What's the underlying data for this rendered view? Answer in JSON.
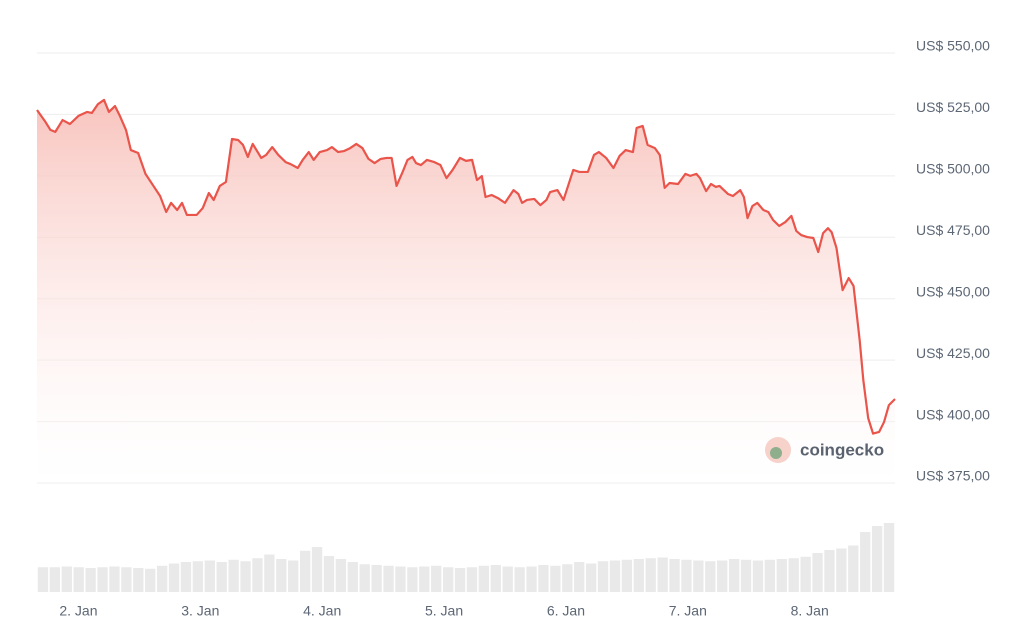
{
  "chart_data": {
    "type": "line",
    "x": [
      1.66,
      1.73,
      1.77,
      1.81,
      1.87,
      1.93,
      2.0,
      2.07,
      2.11,
      2.16,
      2.21,
      2.25,
      2.3,
      2.34,
      2.39,
      2.43,
      2.49,
      2.55,
      2.61,
      2.67,
      2.72,
      2.76,
      2.81,
      2.85,
      2.89,
      2.97,
      3.02,
      3.07,
      3.11,
      3.16,
      3.21,
      3.26,
      3.31,
      3.35,
      3.39,
      3.43,
      3.5,
      3.54,
      3.59,
      3.64,
      3.7,
      3.74,
      3.8,
      3.84,
      3.89,
      3.93,
      3.98,
      4.04,
      4.08,
      4.13,
      4.18,
      4.23,
      4.28,
      4.33,
      4.38,
      4.43,
      4.48,
      4.53,
      4.57,
      4.61,
      4.66,
      4.7,
      4.74,
      4.77,
      4.81,
      4.86,
      4.92,
      4.97,
      5.02,
      5.07,
      5.13,
      5.18,
      5.23,
      5.27,
      5.31,
      5.34,
      5.39,
      5.44,
      5.5,
      5.57,
      5.61,
      5.64,
      5.68,
      5.74,
      5.79,
      5.84,
      5.87,
      5.93,
      5.98,
      6.06,
      6.11,
      6.18,
      6.23,
      6.27,
      6.33,
      6.39,
      6.44,
      6.49,
      6.55,
      6.58,
      6.63,
      6.67,
      6.73,
      6.77,
      6.81,
      6.85,
      6.92,
      6.98,
      7.02,
      7.07,
      7.1,
      7.15,
      7.19,
      7.23,
      7.26,
      7.33,
      7.37,
      7.43,
      7.46,
      7.49,
      7.53,
      7.57,
      7.62,
      7.66,
      7.7,
      7.75,
      7.8,
      7.85,
      7.89,
      7.93,
      7.98,
      8.03,
      8.07,
      8.11,
      8.15,
      8.18,
      8.22,
      8.27,
      8.32,
      8.36,
      8.41,
      8.44,
      8.48,
      8.52,
      8.57,
      8.61,
      8.65,
      8.7
    ],
    "values": [
      526.8,
      521.9,
      518.7,
      517.9,
      522.7,
      521.1,
      524.4,
      526.0,
      525.6,
      529.2,
      530.9,
      526.0,
      528.4,
      524.4,
      518.7,
      510.5,
      509.3,
      500.8,
      496.3,
      491.8,
      485.3,
      489.0,
      486.1,
      489.0,
      484.1,
      484.1,
      486.9,
      493.0,
      490.2,
      495.9,
      497.5,
      515.0,
      514.6,
      512.6,
      507.7,
      513.0,
      507.3,
      508.5,
      511.7,
      508.5,
      505.6,
      504.8,
      503.2,
      506.5,
      509.7,
      506.5,
      509.7,
      510.5,
      511.7,
      509.7,
      510.1,
      511.3,
      513.0,
      511.3,
      506.9,
      505.2,
      506.9,
      507.3,
      507.3,
      495.9,
      501.6,
      506.5,
      507.7,
      505.2,
      504.4,
      506.5,
      505.6,
      504.4,
      499.1,
      502.4,
      507.3,
      506.1,
      506.5,
      498.3,
      499.9,
      491.4,
      492.2,
      491.0,
      489.0,
      494.2,
      492.6,
      489.0,
      490.2,
      490.6,
      488.1,
      490.2,
      493.4,
      494.2,
      490.2,
      502.4,
      501.6,
      501.6,
      508.5,
      509.7,
      507.3,
      503.2,
      508.1,
      510.5,
      509.7,
      519.5,
      520.3,
      512.6,
      511.3,
      508.5,
      495.1,
      497.1,
      496.7,
      500.8,
      500.0,
      500.8,
      499.1,
      493.8,
      496.7,
      495.5,
      495.9,
      492.6,
      491.8,
      494.2,
      491.4,
      482.8,
      487.7,
      489.0,
      486.1,
      485.3,
      482.0,
      479.6,
      481.2,
      483.7,
      477.6,
      475.9,
      475.1,
      474.7,
      469.0,
      476.7,
      478.7,
      477.1,
      470.6,
      453.5,
      458.4,
      455.2,
      433.2,
      416.9,
      401.4,
      395.1,
      395.8,
      399.8,
      406.7,
      409.2
    ],
    "color": "#e9544b",
    "volume_values": [
      33,
      33,
      34,
      33,
      32,
      33,
      34,
      33,
      32,
      31,
      35,
      38,
      40,
      41,
      42,
      40,
      43,
      41,
      45,
      50,
      44,
      42,
      55,
      60,
      48,
      44,
      40,
      37,
      36,
      35,
      34,
      33,
      34,
      35,
      33,
      32,
      33,
      35,
      36,
      34,
      33,
      34,
      36,
      35,
      37,
      40,
      38,
      41,
      42,
      43,
      44,
      45,
      46,
      44,
      43,
      42,
      41,
      42,
      44,
      43,
      42,
      43,
      44,
      45,
      47,
      52,
      56,
      58,
      62,
      80,
      88,
      92
    ],
    "volume_color": "#e9e9e9",
    "y2lim": [
      0,
      100
    ],
    "xlim": [
      1.66,
      8.7
    ],
    "xticks": [
      {
        "value": 2,
        "label": "2. Jan"
      },
      {
        "value": 3,
        "label": "3. Jan"
      },
      {
        "value": 4,
        "label": "4. Jan"
      },
      {
        "value": 5,
        "label": "5. Jan"
      },
      {
        "value": 6,
        "label": "6. Jan"
      },
      {
        "value": 7,
        "label": "7. Jan"
      },
      {
        "value": 8,
        "label": "8. Jan"
      }
    ],
    "ylim": [
      375,
      550
    ],
    "yticks": [
      {
        "value": 550,
        "label": "US$ 550,00"
      },
      {
        "value": 525,
        "label": "US$ 525,00"
      },
      {
        "value": 500,
        "label": "US$ 500,00"
      },
      {
        "value": 475,
        "label": "US$ 475,00"
      },
      {
        "value": 450,
        "label": "US$ 450,00"
      },
      {
        "value": 425,
        "label": "US$ 425,00"
      },
      {
        "value": 400,
        "label": "US$ 400,00"
      },
      {
        "value": 375,
        "label": "US$ 375,00"
      }
    ],
    "grid": true,
    "watermark": "coingecko"
  }
}
